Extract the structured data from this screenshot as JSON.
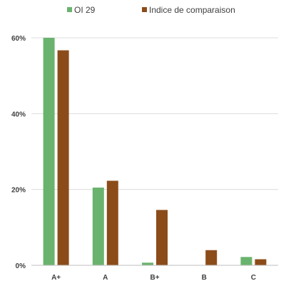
{
  "chart_data": {
    "type": "bar",
    "categories": [
      "A+",
      "A",
      "B+",
      "B",
      "C"
    ],
    "series": [
      {
        "name": "OI 29",
        "values": [
          60.0,
          20.5,
          0.7,
          0.0,
          2.2
        ],
        "color": "#6ab36e"
      },
      {
        "name": "Indice de comparaison",
        "values": [
          56.7,
          22.3,
          14.6,
          4.0,
          1.6
        ],
        "color": "#8b4c1a"
      }
    ],
    "yticks": [
      "0%",
      "20%",
      "40%",
      "60%"
    ],
    "ylim": [
      0,
      60
    ],
    "grid": true,
    "legend_position": "top",
    "title": "",
    "xlabel": "",
    "ylabel": ""
  }
}
